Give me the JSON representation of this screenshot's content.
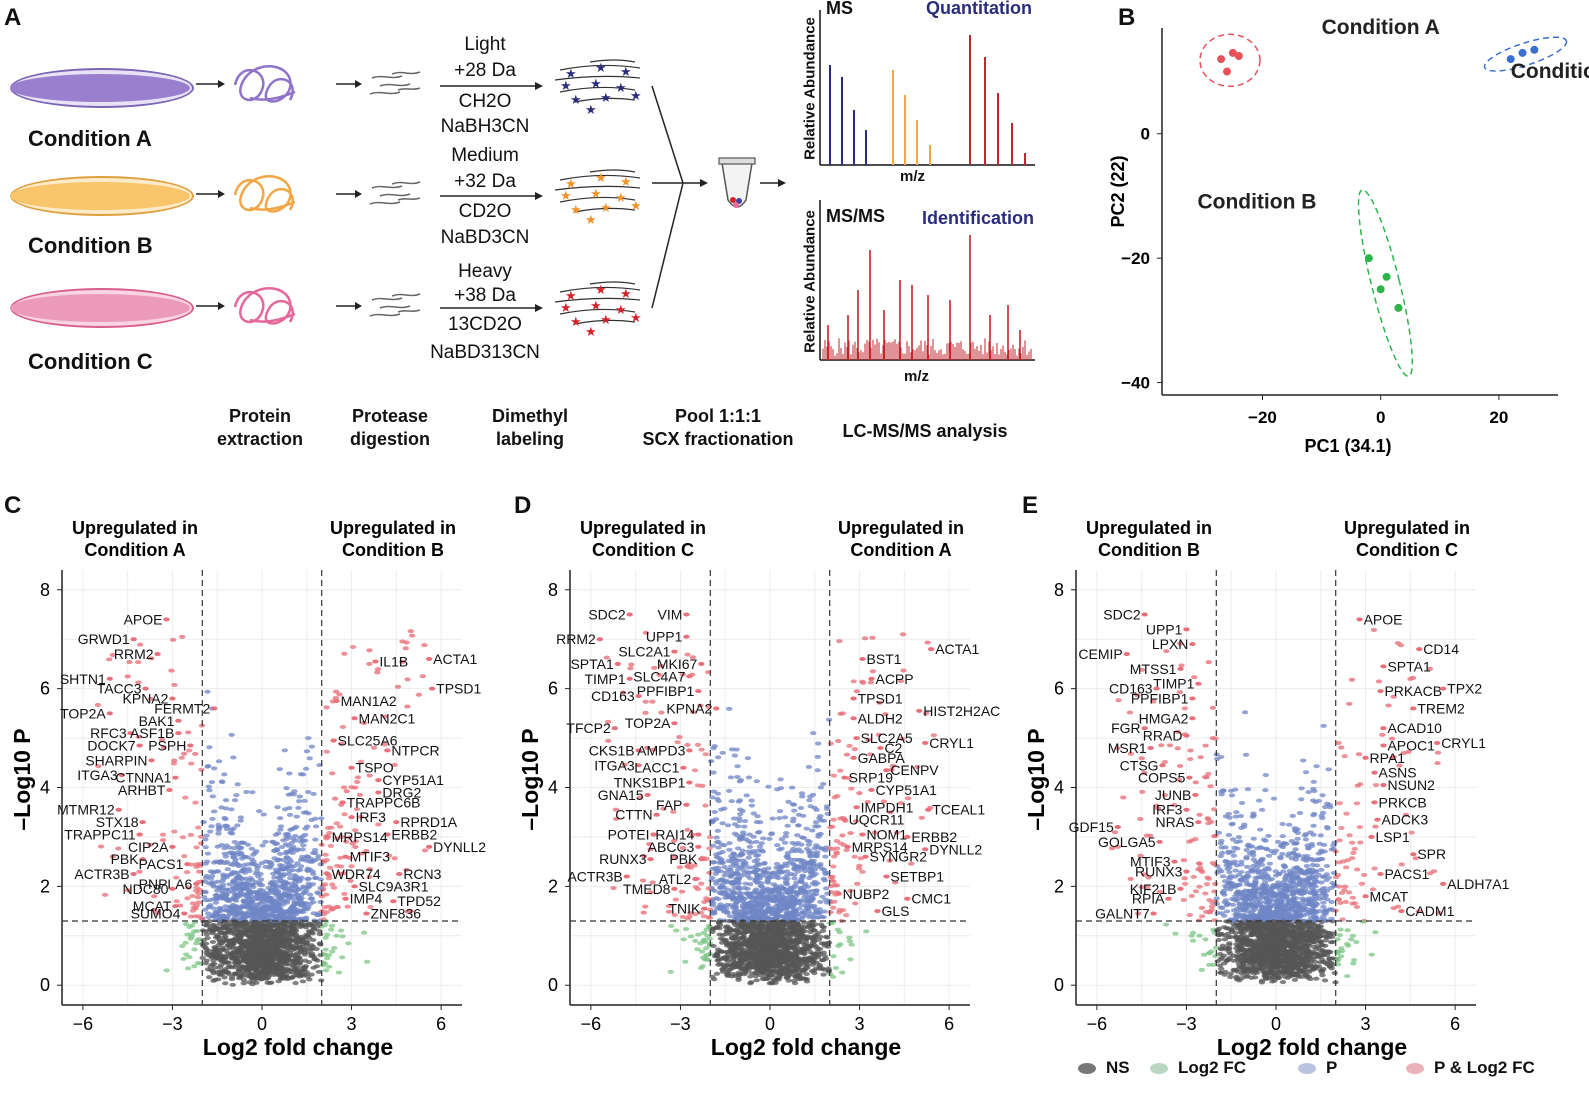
{
  "panel_letters": {
    "a": "A",
    "b": "B",
    "c": "C",
    "d": "D",
    "e": "E"
  },
  "workflow": {
    "conditions": [
      "Condition A",
      "Condition B",
      "Condition C"
    ],
    "light": {
      "name": "Light",
      "mass": "+28 Da",
      "reagent1": "CH2O",
      "reagent2": "NaBH3CN"
    },
    "medium": {
      "name": "Medium",
      "mass": "+32 Da",
      "reagent1": "CD2O",
      "reagent2": "NaBD3CN"
    },
    "heavy": {
      "name": "Heavy",
      "mass": "+38 Da",
      "reagent1": "13CD2O",
      "reagent2": "NaBD313CN"
    },
    "steps": {
      "s1a": "Protein",
      "s1b": "extraction",
      "s2a": "Protease",
      "s2b": "digestion",
      "s3a": "Dimethyl",
      "s3b": "labeling",
      "s4a": "Pool 1:1:1",
      "s4b": "SCX fractionation",
      "s5": "LC-MS/MS analysis"
    },
    "ms_title": "MS",
    "ms_sub": "Quantitation",
    "msms_title": "MS/MS",
    "msms_sub": "Identification",
    "ylabel": "Relative Abundance",
    "xlabel": "m/z"
  },
  "colors": {
    "purple": "#9b7fcf",
    "orange": "#f6a93b",
    "pink": "#e9699d",
    "blue": "#2a2d7c",
    "red": "#c0272d",
    "ns": "#555555",
    "fc": "#6fbf73",
    "p": "#6f86c6",
    "pfc": "#e8707a"
  },
  "chart_data": [
    {
      "type": "scatter",
      "panel": "B",
      "xlabel": "PC1 (34.1)",
      "ylabel": "PC2 (22)",
      "xlim": [
        -37,
        30
      ],
      "ylim": [
        -42,
        17
      ],
      "xticks": [
        -20,
        0,
        20
      ],
      "yticks": [
        0,
        -20,
        -40
      ],
      "series": [
        {
          "name": "Condition A",
          "color": "#e8505a",
          "points": [
            [
              -27,
              12
            ],
            [
              -25,
              13
            ],
            [
              -24,
              12.5
            ],
            [
              -26,
              10
            ]
          ]
        },
        {
          "name": "Condition C",
          "color": "#3a6fd0",
          "points": [
            [
              24,
              13
            ],
            [
              26,
              13.5
            ],
            [
              22,
              12
            ]
          ]
        },
        {
          "name": "Condition B",
          "color": "#2db54a",
          "points": [
            [
              -2,
              -20
            ],
            [
              1,
              -23
            ],
            [
              0,
              -25
            ],
            [
              3,
              -28
            ]
          ]
        }
      ]
    },
    {
      "type": "scatter",
      "panel": "C",
      "subtype": "volcano",
      "left_header": [
        "Upregulated in",
        "Condition A"
      ],
      "right_header": [
        "Upregulated in",
        "Condition B"
      ],
      "xlabel": "Log2 fold change",
      "ylabel": "–Log10 P",
      "xlim": [
        -6.7,
        6.7
      ],
      "ylim": [
        -0.4,
        8.4
      ],
      "xticks": [
        "−6",
        "−3",
        "0",
        "3",
        "6"
      ],
      "yticks": [
        "0",
        "2",
        "4",
        "6",
        "8"
      ],
      "fc_cut": 2,
      "p_cut": 1.3,
      "labels": [
        {
          "text": "APOE",
          "x": -3.2,
          "y": 7.4
        },
        {
          "text": "GRWD1",
          "x": -4.3,
          "y": 7.0
        },
        {
          "text": "RRM2",
          "x": -3.5,
          "y": 6.7
        },
        {
          "text": "SHTN1",
          "x": -5.1,
          "y": 6.2
        },
        {
          "text": "TACC3",
          "x": -3.9,
          "y": 6.0
        },
        {
          "text": "KPNA2",
          "x": -3.0,
          "y": 5.8
        },
        {
          "text": "FERMT2",
          "x": -1.6,
          "y": 5.6
        },
        {
          "text": "TOP2A",
          "x": -5.1,
          "y": 5.5
        },
        {
          "text": "BAK1",
          "x": -2.8,
          "y": 5.35
        },
        {
          "text": "RFC3",
          "x": -4.4,
          "y": 5.1
        },
        {
          "text": "ASF1B",
          "x": -2.8,
          "y": 5.1
        },
        {
          "text": "DOCK7",
          "x": -4.1,
          "y": 4.85
        },
        {
          "text": "PSPH",
          "x": -2.4,
          "y": 4.85
        },
        {
          "text": "SHARPIN",
          "x": -3.7,
          "y": 4.55
        },
        {
          "text": "ITGA3",
          "x": -4.7,
          "y": 4.25
        },
        {
          "text": "CTNNA1",
          "x": -2.9,
          "y": 4.2
        },
        {
          "text": "ARHBT",
          "x": -3.1,
          "y": 3.95
        },
        {
          "text": "MTMR12",
          "x": -4.8,
          "y": 3.55
        },
        {
          "text": "STX18",
          "x": -4.0,
          "y": 3.3
        },
        {
          "text": "TRAPPC11",
          "x": -4.1,
          "y": 3.05
        },
        {
          "text": "CIP2A",
          "x": -3.0,
          "y": 2.8
        },
        {
          "text": "PBK",
          "x": -4.0,
          "y": 2.55
        },
        {
          "text": "PACS1",
          "x": -2.5,
          "y": 2.45
        },
        {
          "text": "ACTR3B",
          "x": -4.3,
          "y": 2.25
        },
        {
          "text": "PNPLA6",
          "x": -2.2,
          "y": 2.05
        },
        {
          "text": "NDC80",
          "x": -3.0,
          "y": 1.95
        },
        {
          "text": "MCAT",
          "x": -2.9,
          "y": 1.6
        },
        {
          "text": "SUMO4",
          "x": -2.6,
          "y": 1.45
        },
        {
          "text": "IL1B",
          "x": 3.8,
          "y": 6.55
        },
        {
          "text": "ACTA1",
          "x": 5.6,
          "y": 6.6
        },
        {
          "text": "TPSD1",
          "x": 5.7,
          "y": 6.0
        },
        {
          "text": "MAN1A2",
          "x": 2.5,
          "y": 5.75
        },
        {
          "text": "MAN2C1",
          "x": 3.1,
          "y": 5.4
        },
        {
          "text": "SLC25A6",
          "x": 2.4,
          "y": 4.95
        },
        {
          "text": "NTPCR",
          "x": 4.2,
          "y": 4.75
        },
        {
          "text": "TSPO",
          "x": 3.0,
          "y": 4.4
        },
        {
          "text": "CYP51A1",
          "x": 3.9,
          "y": 4.15
        },
        {
          "text": "DRG2",
          "x": 3.9,
          "y": 3.9
        },
        {
          "text": "TRAPPC6B",
          "x": 2.7,
          "y": 3.7
        },
        {
          "text": "IRF3",
          "x": 3.0,
          "y": 3.4
        },
        {
          "text": "RPRD1A",
          "x": 4.5,
          "y": 3.3
        },
        {
          "text": "ERBB2",
          "x": 4.2,
          "y": 3.05
        },
        {
          "text": "MRPS14",
          "x": 2.2,
          "y": 3.0
        },
        {
          "text": "DYNLL2",
          "x": 5.6,
          "y": 2.8
        },
        {
          "text": "MTIF3",
          "x": 2.8,
          "y": 2.6
        },
        {
          "text": "RCN3",
          "x": 4.6,
          "y": 2.25
        },
        {
          "text": "WDR74",
          "x": 2.2,
          "y": 2.25
        },
        {
          "text": "SLC9A3R1",
          "x": 3.1,
          "y": 2.0
        },
        {
          "text": "IMP4",
          "x": 2.8,
          "y": 1.75
        },
        {
          "text": "TPD52",
          "x": 4.4,
          "y": 1.7
        },
        {
          "text": "ZNF836",
          "x": 3.5,
          "y": 1.45
        }
      ]
    },
    {
      "type": "scatter",
      "panel": "D",
      "subtype": "volcano",
      "left_header": [
        "Upregulated in",
        "Condition C"
      ],
      "right_header": [
        "Upregulated in",
        "Condition A"
      ],
      "xlabel": "Log2 fold change",
      "ylabel": "–Log10 P",
      "xlim": [
        -6.7,
        6.7
      ],
      "ylim": [
        -0.4,
        8.4
      ],
      "xticks": [
        "−6",
        "−3",
        "0",
        "3",
        "6"
      ],
      "yticks": [
        "0",
        "2",
        "4",
        "6",
        "8"
      ],
      "fc_cut": 2,
      "p_cut": 1.3,
      "labels": [
        {
          "text": "SDC2",
          "x": -4.7,
          "y": 7.5
        },
        {
          "text": "VIM",
          "x": -2.8,
          "y": 7.5
        },
        {
          "text": "RRM2",
          "x": -5.7,
          "y": 7.0
        },
        {
          "text": "UPP1",
          "x": -2.8,
          "y": 7.05
        },
        {
          "text": "SLC2A1",
          "x": -3.2,
          "y": 6.75
        },
        {
          "text": "SPTA1",
          "x": -5.1,
          "y": 6.5
        },
        {
          "text": "MKI67",
          "x": -2.3,
          "y": 6.5
        },
        {
          "text": "SLC4A7",
          "x": -2.7,
          "y": 6.25
        },
        {
          "text": "TIMP1",
          "x": -4.7,
          "y": 6.2
        },
        {
          "text": "PPFIBP1",
          "x": -2.4,
          "y": 5.95
        },
        {
          "text": "CD163",
          "x": -4.4,
          "y": 5.85
        },
        {
          "text": "KPNA2",
          "x": -1.8,
          "y": 5.6
        },
        {
          "text": "TOP2A",
          "x": -3.2,
          "y": 5.3
        },
        {
          "text": "TFCP2",
          "x": -5.2,
          "y": 5.2
        },
        {
          "text": "CKS1B",
          "x": -4.4,
          "y": 4.75
        },
        {
          "text": "AMPD3",
          "x": -2.7,
          "y": 4.75
        },
        {
          "text": "ITGA3",
          "x": -4.4,
          "y": 4.45
        },
        {
          "text": "LACC1",
          "x": -2.9,
          "y": 4.4
        },
        {
          "text": "TNKS1BP1",
          "x": -2.7,
          "y": 4.1
        },
        {
          "text": "GNA15",
          "x": -4.1,
          "y": 3.85
        },
        {
          "text": "FAP",
          "x": -2.8,
          "y": 3.65
        },
        {
          "text": "CTTN",
          "x": -3.8,
          "y": 3.45
        },
        {
          "text": "POTEI",
          "x": -3.9,
          "y": 3.05
        },
        {
          "text": "RAI14",
          "x": -2.4,
          "y": 3.05
        },
        {
          "text": "ABCC3",
          "x": -2.4,
          "y": 2.8
        },
        {
          "text": "RUNX3",
          "x": -4.0,
          "y": 2.55
        },
        {
          "text": "PBK",
          "x": -2.3,
          "y": 2.55
        },
        {
          "text": "ACTR3B",
          "x": -4.8,
          "y": 2.2
        },
        {
          "text": "ATL2",
          "x": -2.5,
          "y": 2.15
        },
        {
          "text": "TMED8",
          "x": -3.2,
          "y": 1.95
        },
        {
          "text": "TNIK",
          "x": -2.2,
          "y": 1.55
        },
        {
          "text": "BST1",
          "x": 3.1,
          "y": 6.6
        },
        {
          "text": "ACTA1",
          "x": 5.4,
          "y": 6.8
        },
        {
          "text": "ACPP",
          "x": 3.4,
          "y": 6.2
        },
        {
          "text": "TPSD1",
          "x": 2.8,
          "y": 5.8
        },
        {
          "text": "ALDH2",
          "x": 2.8,
          "y": 5.4
        },
        {
          "text": "HIST2H2AC",
          "x": 5.0,
          "y": 5.55
        },
        {
          "text": "SLC2A5",
          "x": 2.9,
          "y": 5.0
        },
        {
          "text": "C2",
          "x": 3.7,
          "y": 4.8
        },
        {
          "text": "CRYL1",
          "x": 5.2,
          "y": 4.9
        },
        {
          "text": "GABPA",
          "x": 2.8,
          "y": 4.6
        },
        {
          "text": "CENPV",
          "x": 3.9,
          "y": 4.35
        },
        {
          "text": "SRP19",
          "x": 2.5,
          "y": 4.2
        },
        {
          "text": "CYP51A1",
          "x": 3.4,
          "y": 3.95
        },
        {
          "text": "IMPDH1",
          "x": 2.9,
          "y": 3.6
        },
        {
          "text": "TCEAL1",
          "x": 5.3,
          "y": 3.55
        },
        {
          "text": "UQCR11",
          "x": 2.5,
          "y": 3.35
        },
        {
          "text": "NOM1",
          "x": 3.1,
          "y": 3.05
        },
        {
          "text": "ERBB2",
          "x": 4.6,
          "y": 3.0
        },
        {
          "text": "MRPS14",
          "x": 2.6,
          "y": 2.8
        },
        {
          "text": "DYNLL2",
          "x": 5.2,
          "y": 2.75
        },
        {
          "text": "SYNGR2",
          "x": 3.2,
          "y": 2.6
        },
        {
          "text": "SETBP1",
          "x": 3.9,
          "y": 2.2
        },
        {
          "text": "NUBP2",
          "x": 2.3,
          "y": 1.85
        },
        {
          "text": "CMC1",
          "x": 4.6,
          "y": 1.75
        },
        {
          "text": "GLS",
          "x": 3.6,
          "y": 1.5
        }
      ]
    },
    {
      "type": "scatter",
      "panel": "E",
      "subtype": "volcano",
      "left_header": [
        "Upregulated in",
        "Condition B"
      ],
      "right_header": [
        "Upregulated in",
        "Condition C"
      ],
      "xlabel": "Log2 fold change",
      "ylabel": "–Log10 P",
      "xlim": [
        -6.7,
        6.7
      ],
      "ylim": [
        -0.4,
        8.4
      ],
      "xticks": [
        "−6",
        "−3",
        "0",
        "3",
        "6"
      ],
      "yticks": [
        "0",
        "2",
        "4",
        "6",
        "8"
      ],
      "fc_cut": 2,
      "p_cut": 1.3,
      "labels": [
        {
          "text": "SDC2",
          "x": -4.4,
          "y": 7.5
        },
        {
          "text": "UPP1",
          "x": -3.0,
          "y": 7.2
        },
        {
          "text": "LPXN",
          "x": -2.8,
          "y": 6.9
        },
        {
          "text": "CEMIP",
          "x": -5.0,
          "y": 6.7
        },
        {
          "text": "MTSS1",
          "x": -3.2,
          "y": 6.4
        },
        {
          "text": "TIMP1",
          "x": -2.6,
          "y": 6.1
        },
        {
          "text": "CD163",
          "x": -4.0,
          "y": 6.0
        },
        {
          "text": "PPFIBP1",
          "x": -2.8,
          "y": 5.8
        },
        {
          "text": "HMGA2",
          "x": -2.8,
          "y": 5.4
        },
        {
          "text": "FGR",
          "x": -4.4,
          "y": 5.2
        },
        {
          "text": "RRAD",
          "x": -3.0,
          "y": 5.05
        },
        {
          "text": "MSR1",
          "x": -4.2,
          "y": 4.8
        },
        {
          "text": "CTSG",
          "x": -3.8,
          "y": 4.45
        },
        {
          "text": "COPS5",
          "x": -2.9,
          "y": 4.2
        },
        {
          "text": "JUNB",
          "x": -2.7,
          "y": 3.85
        },
        {
          "text": "IRF3",
          "x": -3.0,
          "y": 3.55
        },
        {
          "text": "GDF15",
          "x": -5.3,
          "y": 3.2
        },
        {
          "text": "NRAS",
          "x": -2.6,
          "y": 3.3
        },
        {
          "text": "GOLGA5",
          "x": -3.9,
          "y": 2.9
        },
        {
          "text": "MTIF3",
          "x": -3.4,
          "y": 2.5
        },
        {
          "text": "RUNX3",
          "x": -3.0,
          "y": 2.3
        },
        {
          "text": "KIF21B",
          "x": -3.2,
          "y": 1.95
        },
        {
          "text": "RPIA",
          "x": -3.6,
          "y": 1.75
        },
        {
          "text": "GALNT7",
          "x": -4.1,
          "y": 1.45
        },
        {
          "text": "APOE",
          "x": 2.8,
          "y": 7.4
        },
        {
          "text": "CD14",
          "x": 4.8,
          "y": 6.8
        },
        {
          "text": "SPTA1",
          "x": 3.6,
          "y": 6.45
        },
        {
          "text": "PRKACB",
          "x": 3.5,
          "y": 5.95
        },
        {
          "text": "TPX2",
          "x": 5.6,
          "y": 6.0
        },
        {
          "text": "TREM2",
          "x": 4.6,
          "y": 5.6
        },
        {
          "text": "ACAD10",
          "x": 3.6,
          "y": 5.2
        },
        {
          "text": "APOC1",
          "x": 3.6,
          "y": 4.85
        },
        {
          "text": "CRYL1",
          "x": 5.4,
          "y": 4.9
        },
        {
          "text": "RPA1",
          "x": 3.0,
          "y": 4.6
        },
        {
          "text": "ASNS",
          "x": 3.3,
          "y": 4.3
        },
        {
          "text": "NSUN2",
          "x": 3.6,
          "y": 4.05
        },
        {
          "text": "PRKCB",
          "x": 3.3,
          "y": 3.7
        },
        {
          "text": "ADCK3",
          "x": 3.4,
          "y": 3.35
        },
        {
          "text": "LSP1",
          "x": 3.2,
          "y": 3.0
        },
        {
          "text": "SPR",
          "x": 4.6,
          "y": 2.65
        },
        {
          "text": "PACS1",
          "x": 3.5,
          "y": 2.25
        },
        {
          "text": "ALDH7A1",
          "x": 5.6,
          "y": 2.05
        },
        {
          "text": "MCAT",
          "x": 3.0,
          "y": 1.8
        },
        {
          "text": "CADM1",
          "x": 4.2,
          "y": 1.5
        }
      ]
    }
  ],
  "legend": {
    "ns": "NS",
    "fc": "Log2 FC",
    "p": "P",
    "pfc": "P & Log2 FC"
  }
}
